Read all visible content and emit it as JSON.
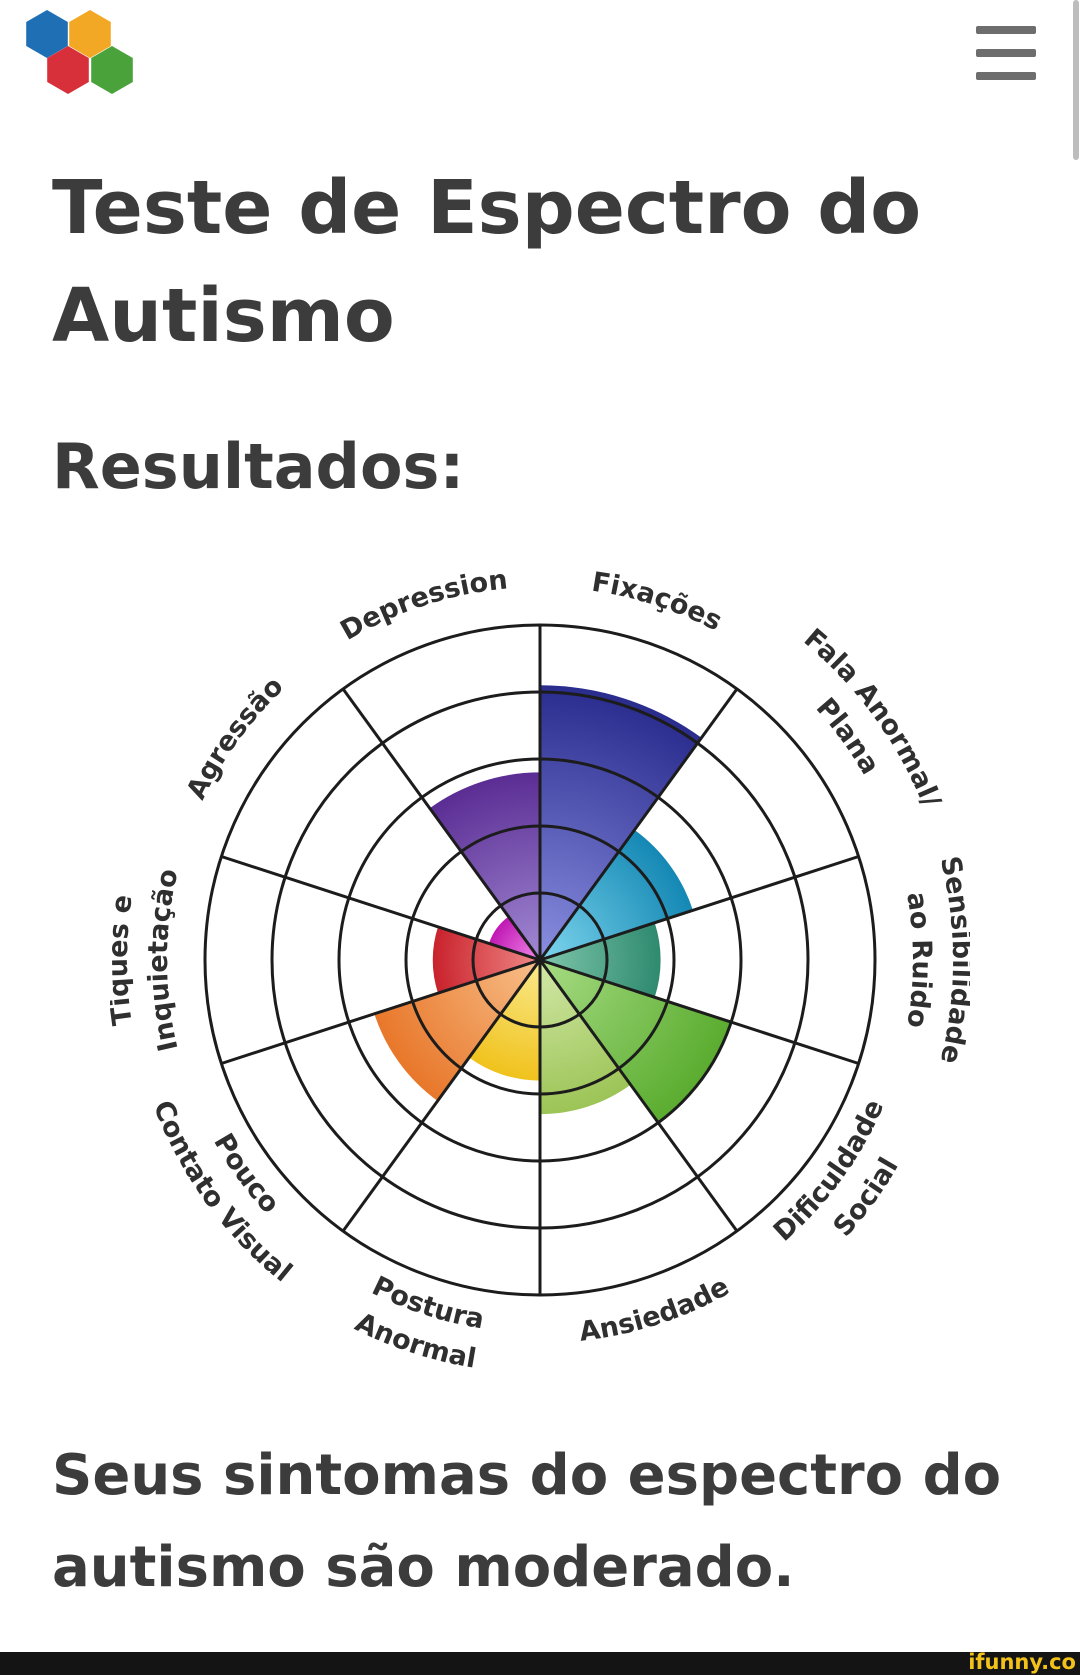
{
  "header": {
    "logo_colors": [
      "#1f6fb5",
      "#f3a825",
      "#d8303a",
      "#4aa33a"
    ]
  },
  "page": {
    "title": "Teste de Espectro do Autismo",
    "subtitle": "Resultados:",
    "result_text": "Seus sintomas do espectro do autismo são moderado."
  },
  "footer": {
    "watermark": "ifunny.co"
  },
  "chart_data": {
    "type": "polar-area",
    "title": "",
    "rings": 5,
    "scale_max": 5,
    "categories": [
      {
        "label": "Fixações",
        "lines": [
          "Fixações"
        ],
        "value": 4.1,
        "color_outer": "#2a2c8e",
        "color_inner": "#8a8fe0"
      },
      {
        "label": "Fala Anormal/ Plana",
        "lines": [
          "Fala Anormal/",
          "Plana"
        ],
        "value": 2.4,
        "color_outer": "#1488b4",
        "color_inner": "#7fd6ee"
      },
      {
        "label": "Sensibilidade ao Ruido",
        "lines": [
          "Sensibilidade",
          "ao Ruido"
        ],
        "value": 1.8,
        "color_outer": "#2f8a6f",
        "color_inner": "#7fc7ac"
      },
      {
        "label": "Dificuldade Social",
        "lines": [
          "Dificuldade",
          "Social"
        ],
        "value": 3.0,
        "color_outer": "#5aac2f",
        "color_inner": "#a7dc84"
      },
      {
        "label": "Ansiedade",
        "lines": [
          "Ansiedade"
        ],
        "value": 2.3,
        "color_outer": "#9cc456",
        "color_inner": "#d3e8a8"
      },
      {
        "label": "Postura Anormal",
        "lines": [
          "Postura",
          "Anormal"
        ],
        "value": 1.8,
        "color_outer": "#f0c21c",
        "color_inner": "#faea8e"
      },
      {
        "label": "Pouco Contato Visual",
        "lines": [
          "Pouco",
          "Contato Visual"
        ],
        "value": 2.6,
        "color_outer": "#e8772a",
        "color_inner": "#f8bf8a"
      },
      {
        "label": "Tiques e Inquietação",
        "lines": [
          "Tiques e",
          "Inquietação"
        ],
        "value": 1.6,
        "color_outer": "#c9222c",
        "color_inner": "#f08a88"
      },
      {
        "label": "Agressão",
        "lines": [
          "Agressão"
        ],
        "value": 0.8,
        "color_outer": "#c018b4",
        "color_inner": "#f08ae8"
      },
      {
        "label": "Depression",
        "lines": [
          "Depression"
        ],
        "value": 2.8,
        "color_outer": "#5b2d94",
        "color_inner": "#a28ad4"
      }
    ]
  }
}
